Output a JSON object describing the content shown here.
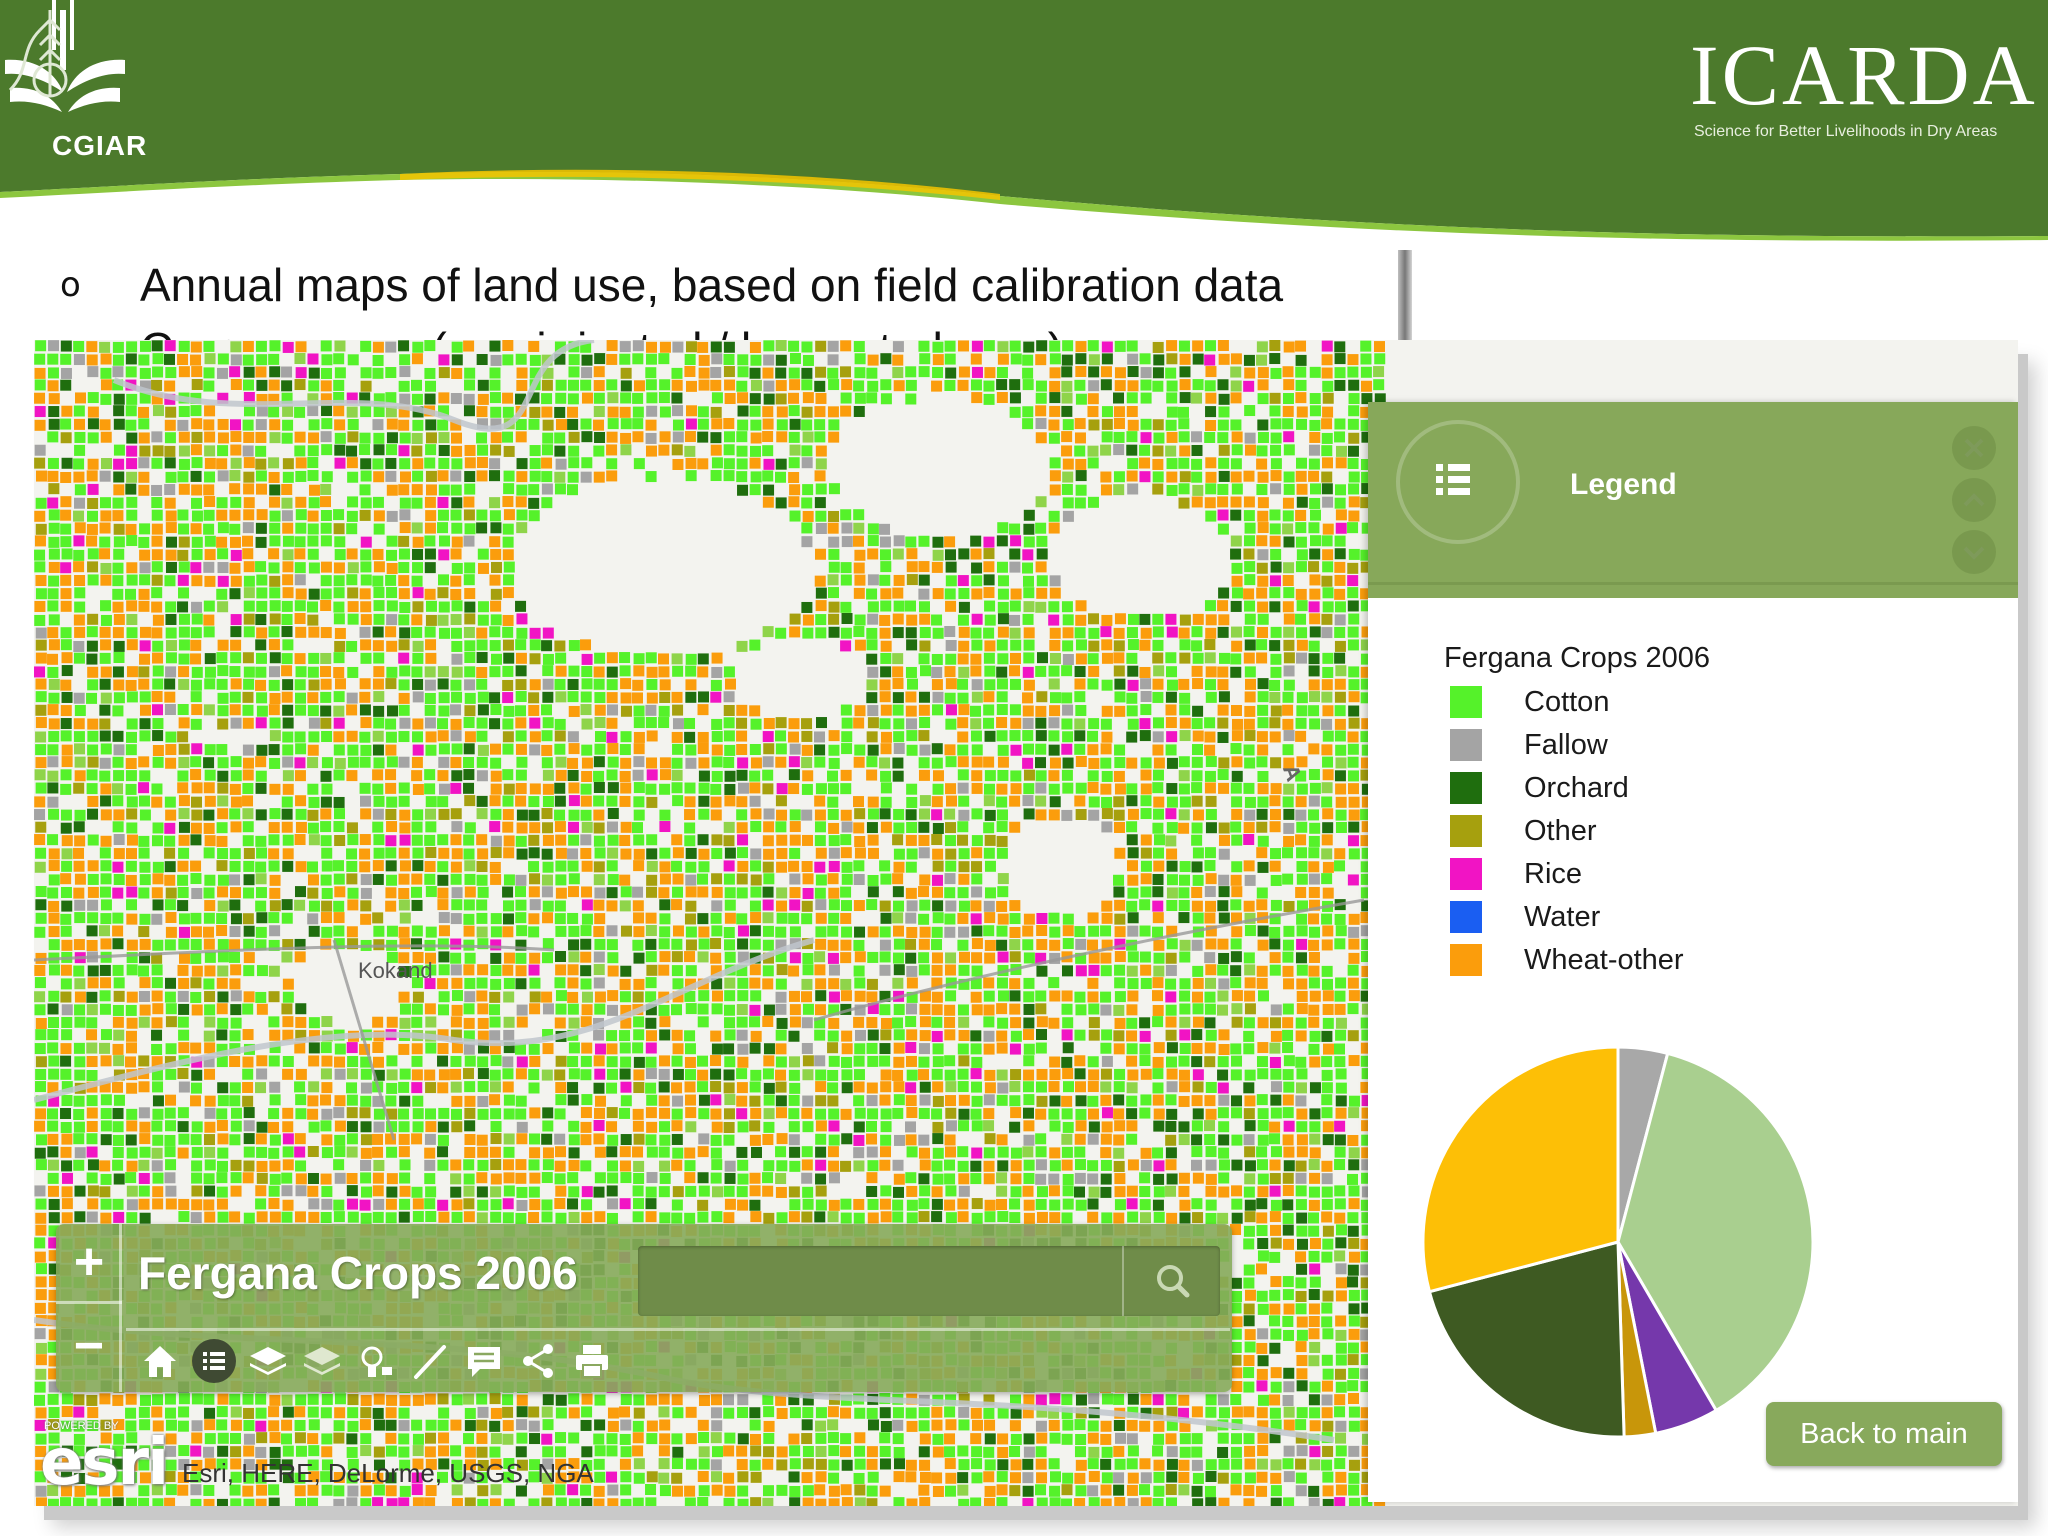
{
  "slide": {
    "header_color": "#4c7a2c",
    "accent_color": "#8cc63f",
    "cgiar_logo_text": "CGIAR",
    "icarda_logo_name": "ICARDA",
    "icarda_tagline": "Science for Better Livelihoods in Dry Areas",
    "bullet_mark": "o",
    "bullets": [
      "Annual maps of land use, based on field calibration data",
      "Crop acreage (e.g. irrigated / harvested area)"
    ]
  },
  "map": {
    "place_label": "Kokand",
    "road_label": "A",
    "attribution": "Esri, HERE, DeLorme, USGS, NGA",
    "esri_logo_text": "esri",
    "esri_powered_by": "POWERED BY"
  },
  "toolbar": {
    "zoom_in_label": "+",
    "zoom_out_label": "−",
    "app_title": "Fergana Crops 2006",
    "search_placeholder": "",
    "tools": [
      "home-icon",
      "list-icon",
      "layers-icon",
      "basemap-icon",
      "bookmark-icon",
      "measure-icon",
      "comment-icon",
      "share-icon",
      "print-icon"
    ]
  },
  "legend": {
    "title": "Legend",
    "layer_title": "Fergana Crops 2006",
    "items": [
      {
        "label": "Cotton",
        "color": "#55f22a"
      },
      {
        "label": "Fallow",
        "color": "#a4a4a4"
      },
      {
        "label": "Orchard",
        "color": "#1f6e0e"
      },
      {
        "label": "Other",
        "color": "#a6a00e"
      },
      {
        "label": "Rice",
        "color": "#f114c4"
      },
      {
        "label": "Water",
        "color": "#1a5ef2"
      },
      {
        "label": "Wheat-other",
        "color": "#fb9d0c"
      }
    ],
    "back_button": "Back to main"
  },
  "chart_data": {
    "type": "pie",
    "slices": [
      {
        "value": 4.1,
        "color": "#a8a8a8"
      },
      {
        "value": 37.5,
        "color": "#a9cf8f"
      },
      {
        "value": 5.3,
        "color": "#7538ab"
      },
      {
        "value": 2.6,
        "color": "#c8960a"
      },
      {
        "value": 21.4,
        "color": "#3e5a22"
      },
      {
        "value": 29.1,
        "color": "#fdbf06"
      }
    ]
  }
}
